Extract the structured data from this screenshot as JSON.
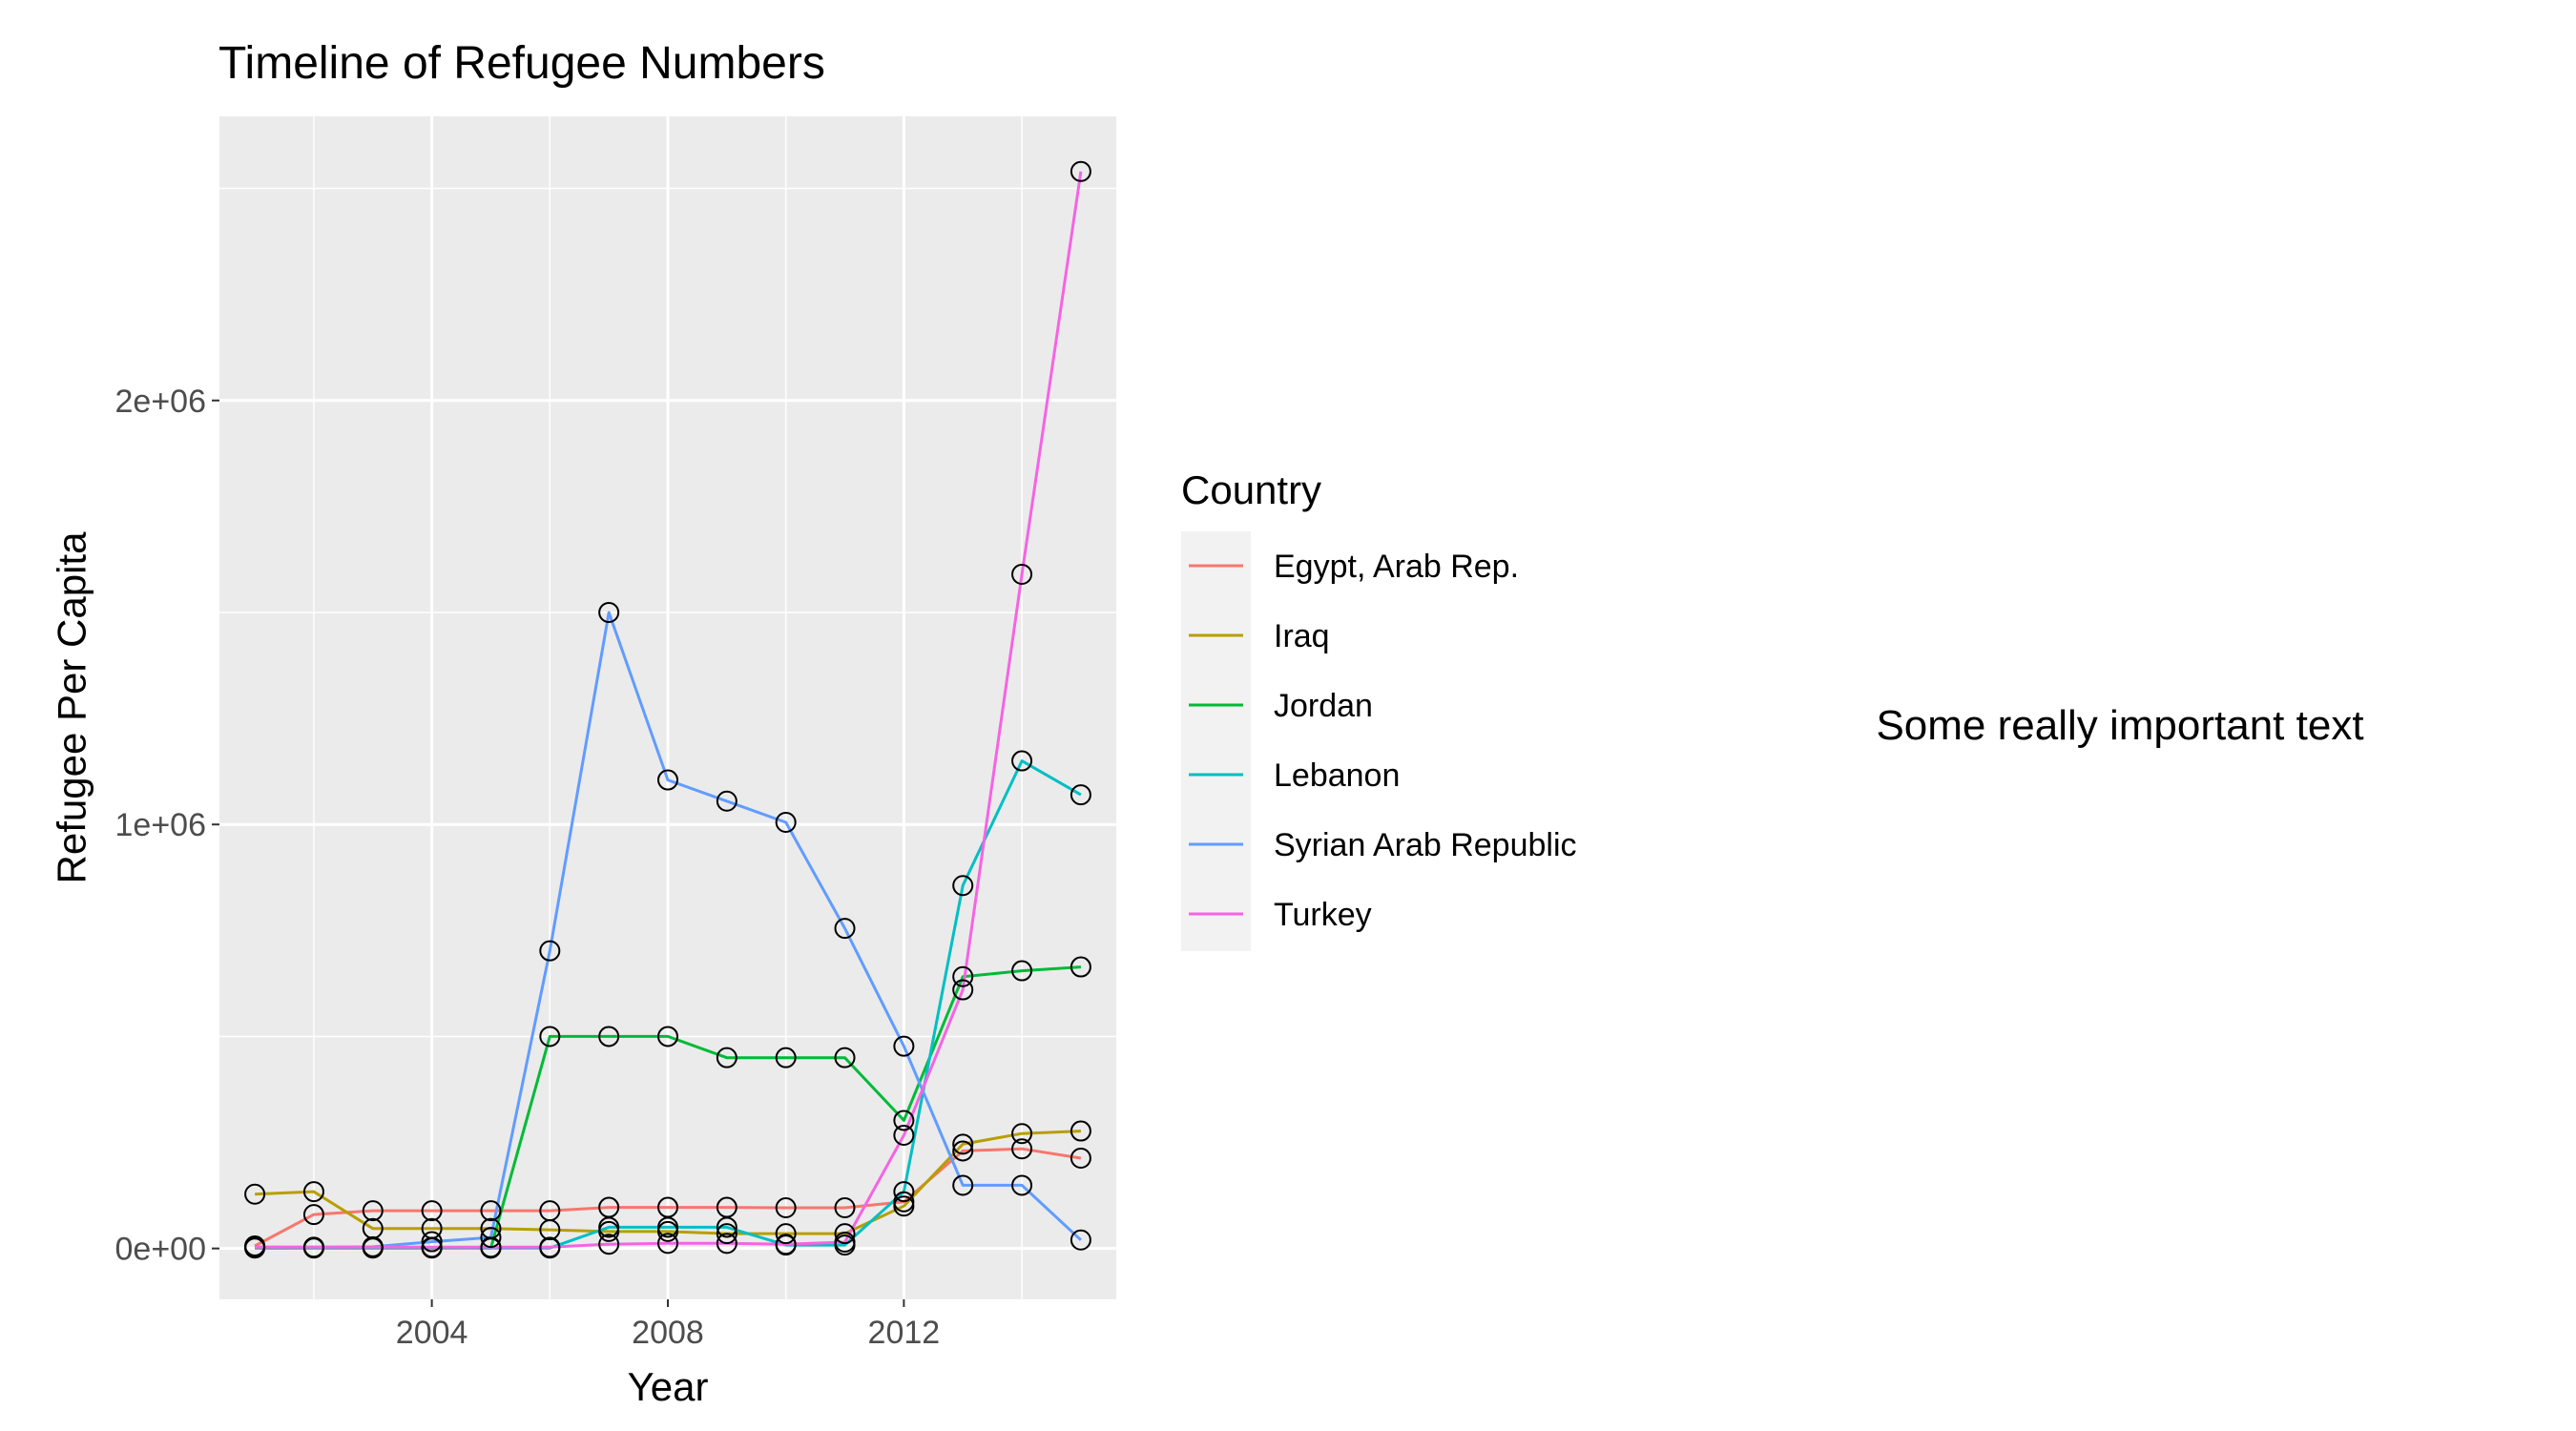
{
  "chart_data": {
    "type": "line",
    "title": "Timeline of Refugee Numbers",
    "xlabel": "Year",
    "ylabel": "Refugee Per Capita",
    "xlim": [
      2000.4,
      2015.6
    ],
    "ylim": [
      -120000,
      2670000
    ],
    "x_ticks": [
      2004,
      2008,
      2012
    ],
    "x_tick_labels": [
      "2004",
      "2008",
      "2012"
    ],
    "y_ticks": [
      0,
      1000000,
      2000000
    ],
    "y_tick_labels": [
      "0e+00",
      "1e+06",
      "2e+06"
    ],
    "grid": true,
    "legend_title": "Country",
    "legend_position": "right",
    "annotation": "Some really important text",
    "x": [
      2001,
      2002,
      2003,
      2004,
      2005,
      2006,
      2007,
      2008,
      2009,
      2010,
      2011,
      2012,
      2013,
      2014,
      2015
    ],
    "series": [
      {
        "name": "Egypt, Arab Rep.",
        "color": "#F8766D",
        "values": [
          6000,
          80000,
          89000,
          89000,
          89000,
          89000,
          97000,
          97000,
          97000,
          96000,
          96000,
          110000,
          230000,
          235000,
          213000
        ]
      },
      {
        "name": "Iraq",
        "color": "#B79F00",
        "values": [
          128000,
          134000,
          47000,
          47000,
          47000,
          44000,
          40000,
          40000,
          35000,
          35000,
          35000,
          100000,
          246000,
          271000,
          277000
        ]
      },
      {
        "name": "Jordan",
        "color": "#00BA38",
        "values": [
          1000,
          1000,
          1000,
          1000,
          1000,
          500000,
          500000,
          500000,
          450000,
          450000,
          450000,
          302000,
          641000,
          655000,
          664000
        ]
      },
      {
        "name": "Lebanon",
        "color": "#00BFC4",
        "values": [
          3000,
          2000,
          2000,
          2000,
          1000,
          1000,
          50000,
          50000,
          50000,
          8000,
          8000,
          134000,
          856000,
          1150000,
          1070000
        ]
      },
      {
        "name": "Syrian Arab Republic",
        "color": "#619CFF",
        "values": [
          3000,
          3000,
          4000,
          16000,
          26000,
          702000,
          1500000,
          1105000,
          1055000,
          1005000,
          755000,
          477000,
          149000,
          149000,
          20000
        ]
      },
      {
        "name": "Turkey",
        "color": "#F564E3",
        "values": [
          3000,
          3000,
          3000,
          3000,
          3000,
          3000,
          10000,
          12000,
          12000,
          10000,
          15000,
          267000,
          610000,
          1590000,
          2540000
        ]
      }
    ]
  }
}
